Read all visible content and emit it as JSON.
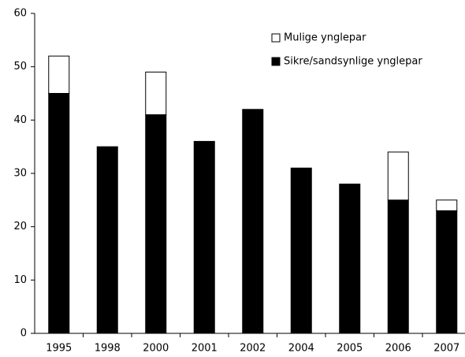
{
  "chart_data": {
    "type": "stacked_bar",
    "categories": [
      "1995",
      "1998",
      "2000",
      "2001",
      "2002",
      "2004",
      "2005",
      "2006",
      "2007"
    ],
    "series": [
      {
        "name": "Sikre/sandsynlige ynglepar",
        "color": "#000000",
        "values": [
          45,
          35,
          41,
          36,
          42,
          31,
          28,
          25,
          23
        ]
      },
      {
        "name": "Mulige ynglepar",
        "color": "#ffffff",
        "values": [
          7,
          0,
          8,
          0,
          0,
          0,
          0,
          9,
          2
        ]
      }
    ],
    "ylim": [
      0,
      60
    ],
    "yticks": [
      0,
      10,
      20,
      30,
      40,
      50,
      60
    ],
    "grid": false,
    "legend": "top-right"
  }
}
